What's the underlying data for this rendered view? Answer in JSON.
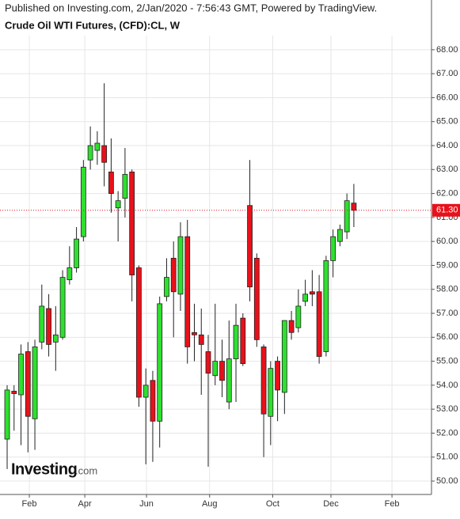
{
  "header": {
    "published": "Published on Investing.com, 2/Jan/2020 - 7:56:43 GMT, Powered by TradingView."
  },
  "logo": {
    "name": "Investing",
    "suffix": ".com"
  },
  "chart_data": {
    "type": "candlestick",
    "title": "Crude Oil WTI Futures, (CFD):CL, W",
    "categories": [
      null,
      null,
      null,
      null,
      null,
      null,
      null,
      null,
      null,
      null,
      null,
      null,
      null,
      null,
      null,
      null,
      null,
      null,
      null,
      null,
      null,
      null,
      null,
      null,
      null,
      null,
      null,
      null,
      null,
      null,
      null,
      null,
      null,
      null,
      null,
      null,
      null,
      null,
      null,
      null,
      null,
      null,
      null,
      null,
      null,
      null,
      null,
      null,
      null,
      null,
      null
    ],
    "open": [
      51.75,
      53.75,
      53.6,
      55.4,
      52.6,
      55.8,
      57.2,
      55.8,
      56.0,
      58.4,
      58.9,
      60.2,
      63.4,
      63.8,
      64.0,
      62.9,
      61.4,
      61.8,
      62.9,
      58.9,
      53.5,
      54.2,
      52.5,
      57.7,
      59.3,
      57.8,
      60.2,
      56.2,
      56.1,
      55.4,
      54.4,
      55.0,
      53.3,
      55.1,
      56.8,
      61.5,
      59.3,
      55.6,
      52.7,
      55.0,
      53.7,
      56.7,
      56.4,
      57.5,
      57.9,
      57.9,
      55.4,
      59.2,
      60.0,
      60.4,
      61.6
    ],
    "high": [
      54.0,
      54.0,
      55.7,
      55.8,
      55.9,
      58.2,
      57.8,
      57.3,
      58.8,
      59.8,
      60.6,
      63.4,
      64.8,
      64.6,
      66.6,
      64.3,
      62.1,
      63.9,
      63.0,
      59.0,
      54.7,
      54.6,
      57.7,
      59.3,
      60.0,
      60.8,
      60.9,
      57.4,
      57.2,
      56.1,
      57.4,
      55.9,
      56.7,
      57.4,
      57.0,
      63.4,
      59.5,
      55.7,
      55.0,
      55.2,
      56.7,
      57.1,
      58.0,
      58.4,
      58.8,
      58.6,
      59.4,
      60.5,
      60.7,
      62.0,
      62.4
    ],
    "low": [
      50.5,
      52.1,
      51.5,
      51.2,
      51.3,
      55.5,
      55.2,
      54.6,
      55.9,
      58.2,
      58.7,
      60.0,
      63.0,
      63.2,
      62.3,
      61.2,
      60.0,
      61.0,
      57.5,
      53.1,
      50.7,
      50.8,
      51.4,
      57.5,
      56.0,
      57.1,
      54.9,
      55.0,
      53.6,
      50.6,
      54.0,
      53.5,
      53.0,
      53.3,
      54.8,
      57.5,
      55.6,
      51.0,
      51.5,
      52.5,
      52.8,
      55.9,
      56.2,
      57.3,
      57.3,
      54.9,
      55.2,
      58.5,
      59.8,
      60.1,
      60.6
    ],
    "close": [
      53.8,
      53.65,
      55.3,
      52.7,
      55.6,
      57.3,
      55.7,
      56.1,
      58.5,
      58.9,
      60.1,
      63.1,
      64.0,
      64.1,
      63.3,
      62.0,
      61.7,
      62.8,
      58.6,
      53.5,
      54.0,
      52.5,
      57.4,
      58.5,
      57.9,
      60.2,
      55.6,
      56.1,
      55.7,
      54.5,
      55.0,
      54.2,
      55.1,
      56.5,
      54.9,
      58.1,
      55.9,
      52.8,
      54.7,
      53.8,
      56.7,
      56.2,
      57.3,
      57.8,
      57.8,
      55.2,
      59.2,
      60.2,
      60.5,
      61.7,
      61.3
    ],
    "up_color": "#2ee02e",
    "down_color": "#e8111a",
    "xlim": [
      -1.03,
      61.2
    ],
    "xticks": [
      {
        "value": 3.2,
        "label": "Feb"
      },
      {
        "value": 11.2,
        "label": "Apr"
      },
      {
        "value": 20.1,
        "label": "Jun"
      },
      {
        "value": 29.2,
        "label": "Aug"
      },
      {
        "value": 38.3,
        "label": "Oct"
      },
      {
        "value": 46.7,
        "label": "Dec"
      },
      {
        "value": 55.5,
        "label": "Feb"
      }
    ],
    "ylim": [
      49.44,
      68.59
    ],
    "yticks": [
      {
        "value": 50,
        "label": "50.00"
      },
      {
        "value": 51,
        "label": "51.00"
      },
      {
        "value": 52,
        "label": "52.00"
      },
      {
        "value": 53,
        "label": "53.00"
      },
      {
        "value": 54,
        "label": "54.00"
      },
      {
        "value": 55,
        "label": "55.00"
      },
      {
        "value": 56,
        "label": "56.00"
      },
      {
        "value": 57,
        "label": "57.00"
      },
      {
        "value": 58,
        "label": "58.00"
      },
      {
        "value": 59,
        "label": "59.00"
      },
      {
        "value": 60,
        "label": "60.00"
      },
      {
        "value": 61,
        "label": "61.00"
      },
      {
        "value": 62,
        "label": "62.00"
      },
      {
        "value": 63,
        "label": "63.00"
      },
      {
        "value": 64,
        "label": "64.00"
      },
      {
        "value": 65,
        "label": "65.00"
      },
      {
        "value": 66,
        "label": "66.00"
      },
      {
        "value": 67,
        "label": "67.00"
      },
      {
        "value": 68,
        "label": "68.00"
      }
    ],
    "last_price": {
      "value": 61.3,
      "label": "61.30"
    },
    "last_color": "#e8111a",
    "grid": true
  }
}
